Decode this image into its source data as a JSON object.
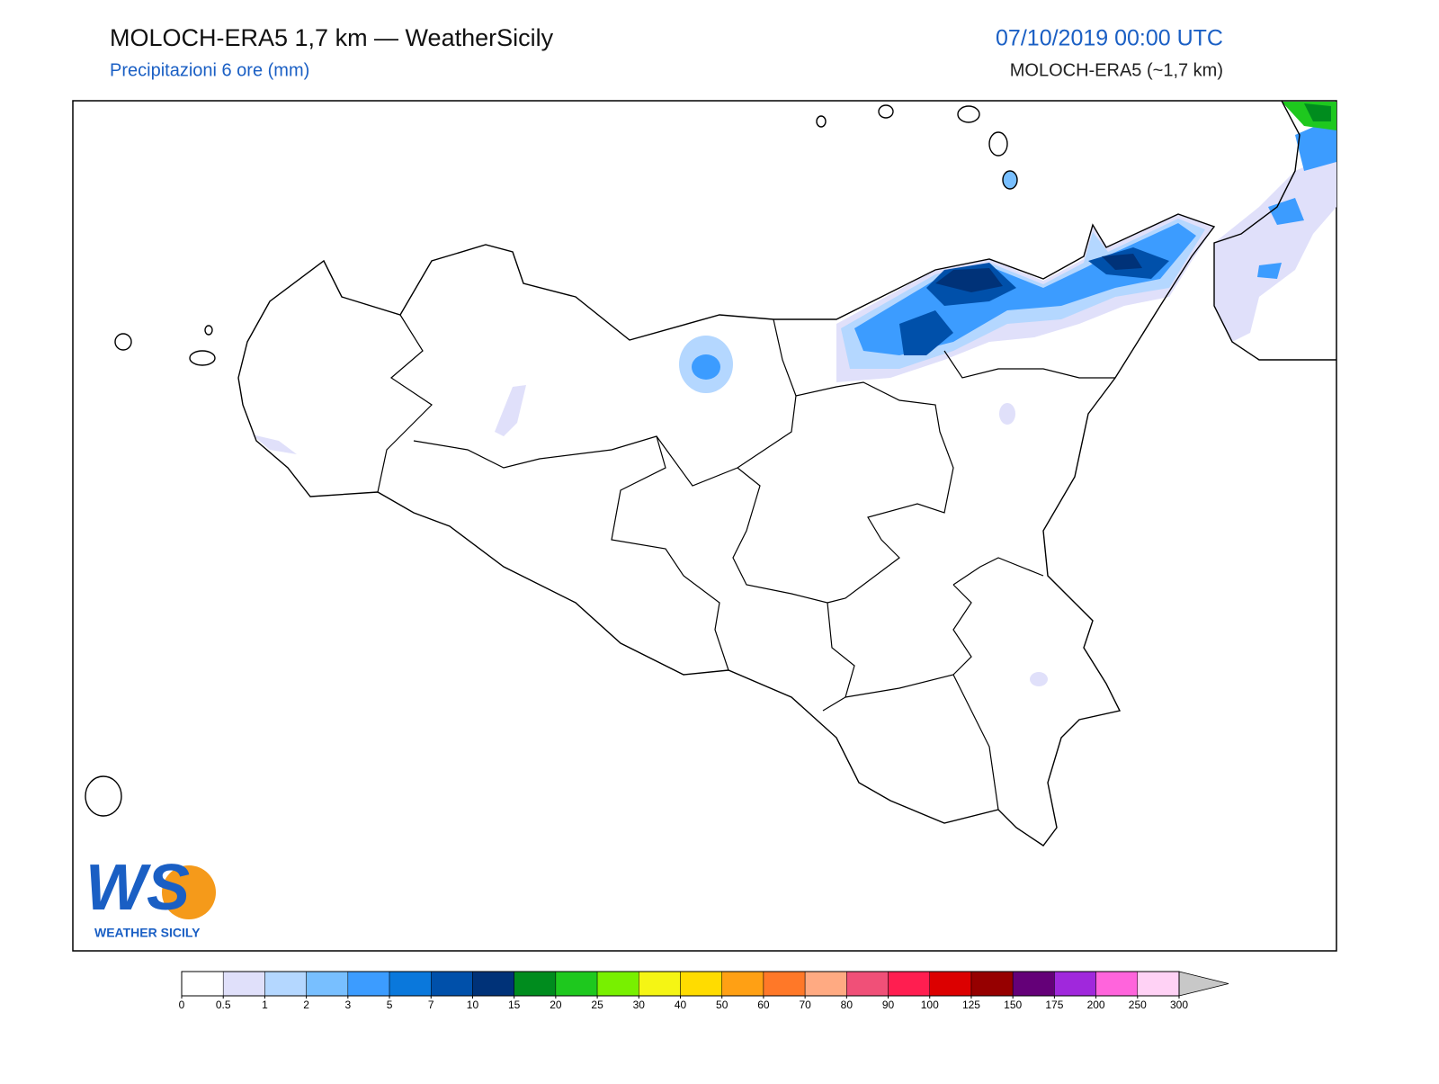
{
  "header": {
    "title": "MOLOCH-ERA5 1,7 km — WeatherSicily",
    "subtitle": "Precipitazioni 6 ore (mm)",
    "date": "07/10/2019 00:00 UTC",
    "model": "MOLOCH-ERA5 (~1,7 km)"
  },
  "logo": {
    "text": "WS",
    "caption": "WEATHER SICILY"
  },
  "colorbar": {
    "ticks": [
      0,
      0.5,
      1,
      2,
      3,
      5,
      7,
      10,
      15,
      20,
      25,
      30,
      40,
      50,
      60,
      70,
      80,
      90,
      100,
      125,
      150,
      175,
      200,
      250,
      300
    ],
    "colors": [
      "#ffffff",
      "#e0e0fa",
      "#b4d7ff",
      "#78bfff",
      "#3c9cff",
      "#0a78dc",
      "#0050aa",
      "#003278",
      "#008c1e",
      "#1ec81e",
      "#78f000",
      "#f5f514",
      "#ffdc00",
      "#ffa014",
      "#ff7828",
      "#ffaa82",
      "#f05078",
      "#ff1e50",
      "#dc0000",
      "#960000",
      "#640078",
      "#a028dc",
      "#ff64dc",
      "#ffd2f5"
    ],
    "over_color": "#c8c8c8"
  }
}
